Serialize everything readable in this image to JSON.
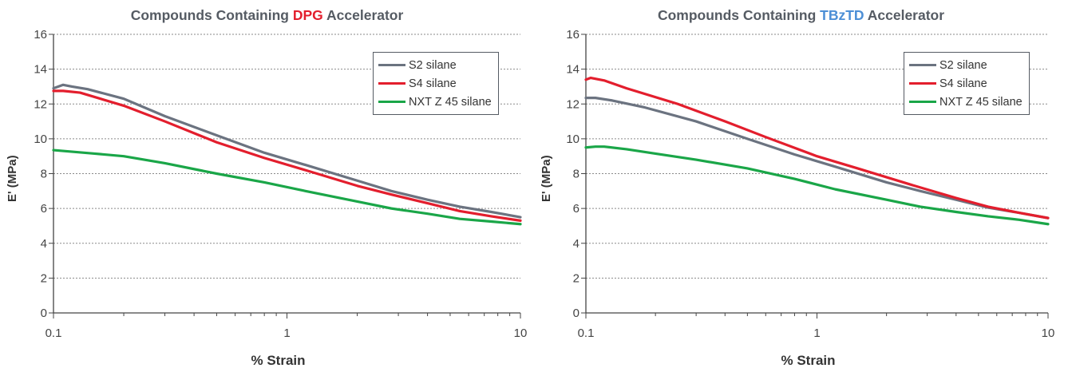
{
  "chart_data": [
    {
      "type": "line",
      "title_prefix": "Compounds Containing ",
      "title_accent": "DPG",
      "title_suffix": " Accelerator",
      "title_accent_color": "#e31e2d",
      "xlabel": "% Strain",
      "ylabel": "E' (MPa)",
      "x_scale": "log",
      "xlim": [
        0.1,
        10
      ],
      "ylim": [
        0,
        16
      ],
      "x_ticks": [
        "0.1",
        "1",
        "10"
      ],
      "y_ticks": [
        "0",
        "2",
        "4",
        "6",
        "8",
        "10",
        "12",
        "14",
        "16"
      ],
      "grid": "horizontal dashed",
      "legend_position": "top-right",
      "series": [
        {
          "name": "S2 silane",
          "color": "#6b7380",
          "x": [
            0.1,
            0.11,
            0.12,
            0.14,
            0.2,
            0.3,
            0.5,
            0.8,
            1.2,
            2,
            2.8,
            4,
            5.5,
            7.5,
            10
          ],
          "y": [
            12.9,
            13.1,
            13.0,
            12.85,
            12.3,
            11.3,
            10.2,
            9.2,
            8.5,
            7.6,
            7.0,
            6.5,
            6.1,
            5.8,
            5.5
          ]
        },
        {
          "name": "S4 silane",
          "color": "#e31e2d",
          "x": [
            0.1,
            0.11,
            0.13,
            0.2,
            0.3,
            0.5,
            0.8,
            1.2,
            2,
            2.8,
            4,
            5.5,
            7.5,
            10
          ],
          "y": [
            12.75,
            12.75,
            12.65,
            11.9,
            11.0,
            9.8,
            8.9,
            8.2,
            7.3,
            6.8,
            6.3,
            5.85,
            5.55,
            5.3
          ]
        },
        {
          "name": "NXT Z 45 silane",
          "color": "#1aa648",
          "x": [
            0.1,
            0.15,
            0.2,
            0.3,
            0.5,
            0.8,
            1.2,
            2,
            2.8,
            4,
            5.5,
            7.5,
            10
          ],
          "y": [
            9.35,
            9.15,
            9.0,
            8.6,
            8.0,
            7.5,
            7.0,
            6.4,
            6.0,
            5.7,
            5.4,
            5.25,
            5.1
          ]
        }
      ]
    },
    {
      "type": "line",
      "title_prefix": "Compounds Containing ",
      "title_accent": "TBzTD",
      "title_suffix": " Accelerator",
      "title_accent_color": "#4d8fd6",
      "xlabel": "% Strain",
      "ylabel": "E' (MPa)",
      "x_scale": "log",
      "xlim": [
        0.1,
        10
      ],
      "ylim": [
        0,
        16
      ],
      "x_ticks": [
        "0.1",
        "1",
        "10"
      ],
      "y_ticks": [
        "0",
        "2",
        "4",
        "6",
        "8",
        "10",
        "12",
        "14",
        "16"
      ],
      "grid": "horizontal dashed",
      "legend_position": "top-right",
      "series": [
        {
          "name": "S2 silane",
          "color": "#6b7380",
          "x": [
            0.1,
            0.11,
            0.13,
            0.18,
            0.3,
            0.5,
            0.8,
            1.2,
            2,
            2.8,
            4,
            5.5,
            7.5,
            10
          ],
          "y": [
            12.35,
            12.35,
            12.2,
            11.8,
            11.0,
            10.0,
            9.1,
            8.4,
            7.5,
            7.0,
            6.5,
            6.05,
            5.75,
            5.45
          ]
        },
        {
          "name": "S4 silane",
          "color": "#e31e2d",
          "x": [
            0.1,
            0.105,
            0.12,
            0.15,
            0.25,
            0.4,
            0.6,
            1.0,
            1.5,
            2.5,
            4,
            5.5,
            7.5,
            10
          ],
          "y": [
            13.4,
            13.5,
            13.35,
            12.9,
            12.0,
            11.0,
            10.1,
            9.0,
            8.3,
            7.4,
            6.6,
            6.1,
            5.75,
            5.45
          ]
        },
        {
          "name": "NXT Z 45 silane",
          "color": "#1aa648",
          "x": [
            0.1,
            0.11,
            0.12,
            0.15,
            0.2,
            0.3,
            0.5,
            0.8,
            1.2,
            2,
            2.8,
            4,
            5.5,
            7.5,
            10
          ],
          "y": [
            9.5,
            9.55,
            9.55,
            9.4,
            9.15,
            8.8,
            8.3,
            7.7,
            7.1,
            6.5,
            6.1,
            5.8,
            5.55,
            5.35,
            5.1
          ]
        }
      ]
    }
  ]
}
